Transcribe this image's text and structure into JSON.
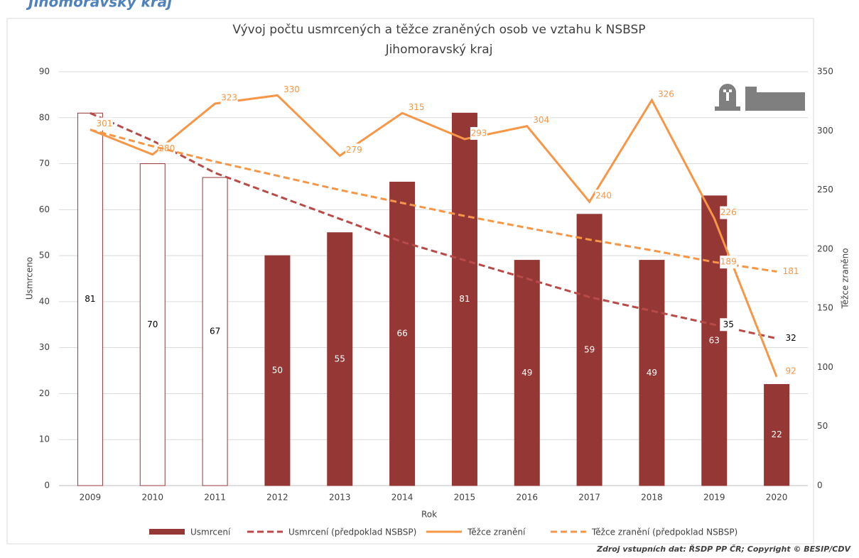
{
  "heading": "Jihomoravský kraj",
  "source": "Zdroj vstupních dat: ŘSDP PP ČR; Copyright © BESIP/CDV",
  "chart_data": {
    "type": "bar",
    "title": "Vývoj počtu usmrcených a těžce zraněných osob ve vztahu k NSBSP",
    "subtitle": "Jihomoravský kraj",
    "x_label": "Rok",
    "y_label": "Usmrceno",
    "y2_label": "Těžce zraněno",
    "categories": [
      "2009",
      "2010",
      "2011",
      "2012",
      "2013",
      "2014",
      "2015",
      "2016",
      "2017",
      "2018",
      "2019",
      "2020"
    ],
    "ylim": [
      0,
      90
    ],
    "yticks": [
      0,
      10,
      20,
      30,
      40,
      50,
      60,
      70,
      80,
      90
    ],
    "y2lim": [
      0,
      350
    ],
    "y2ticks": [
      0,
      50,
      100,
      150,
      200,
      250,
      300,
      350
    ],
    "grid": true,
    "series": [
      {
        "name": "Usmrcení",
        "type": "bar",
        "color": "#953735",
        "fill_colors": [
          "#ffffff",
          "#ffffff",
          "#ffffff",
          "#953735",
          "#953735",
          "#953735",
          "#953735",
          "#953735",
          "#953735",
          "#953735",
          "#953735",
          "#953735"
        ],
        "values": [
          81,
          70,
          67,
          50,
          55,
          66,
          81,
          49,
          59,
          49,
          63,
          22
        ]
      },
      {
        "name": "Usmrcení (předpoklad NSBSP)",
        "type": "line",
        "dashed": true,
        "color": "#b84a48",
        "values": [
          81,
          75,
          68,
          63,
          58,
          53,
          49,
          45,
          41,
          38,
          35,
          32
        ],
        "value_labels": [
          null,
          null,
          null,
          null,
          null,
          null,
          null,
          null,
          null,
          null,
          "35",
          "32"
        ]
      },
      {
        "name": "Těžce zranění",
        "type": "line",
        "dashed": false,
        "color": "#f79646",
        "axis": "y2",
        "values": [
          301,
          280,
          323,
          330,
          279,
          315,
          293,
          304,
          240,
          326,
          226,
          92
        ]
      },
      {
        "name": "Těžce zranění (předpoklad NSBSP)",
        "type": "line",
        "dashed": true,
        "color": "#f79646",
        "axis": "y2",
        "values": [
          301,
          287,
          274,
          262,
          250,
          239,
          228,
          218,
          208,
          199,
          189,
          181
        ],
        "value_labels": [
          null,
          null,
          null,
          null,
          null,
          null,
          null,
          null,
          null,
          null,
          "189",
          "181"
        ]
      }
    ]
  }
}
